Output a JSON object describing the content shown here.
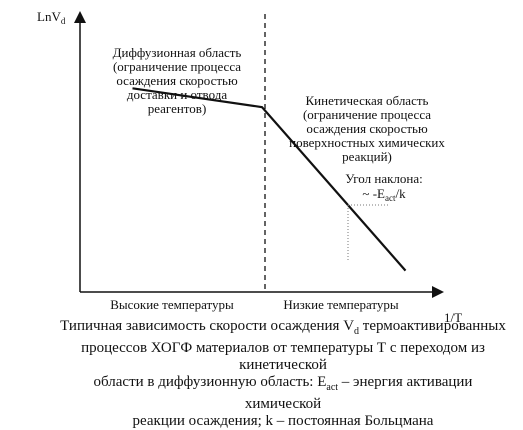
{
  "chart_data": {
    "type": "line",
    "title": "",
    "ylabel_main": "LnV",
    "ylabel_sub": "d",
    "xlabel": "1/T",
    "xlim": [
      0,
      100
    ],
    "ylim": [
      0,
      100
    ],
    "divider_x": 52,
    "series": [
      {
        "x": [
          15,
          52,
          93
        ],
        "y": [
          76,
          69,
          8
        ]
      }
    ],
    "annotations": {
      "diffusion": [
        "Диффузионная область",
        "(ограничение процесса",
        "осаждения скоростью",
        "доставки и отвода",
        "реагентов)"
      ],
      "kinetic": [
        "Кинетическая область",
        "(ограничение процесса",
        "осаждения скоростью",
        "поверхностных химических",
        "реакций)"
      ],
      "slope_line1": "Угол наклона:",
      "slope_prefix": "~ -E",
      "slope_sub": "act",
      "slope_suffix": "/k",
      "high_temp": "Высокие температуры",
      "low_temp": "Низкие температуры"
    }
  },
  "caption": {
    "line1_a": "Типичная зависимость скорости осаждения V",
    "line1_sub": "d",
    "line1_b": " термоактивированных",
    "line2": "процессов ХОГФ материалов от температуры Т с переходом из кинетической",
    "line3_a": "области в диффузионную область: E",
    "line3_sub": "act",
    "line3_b": " – энергия активации химической",
    "line4": "реакции осаждения; k – постоянная Больцмана"
  }
}
